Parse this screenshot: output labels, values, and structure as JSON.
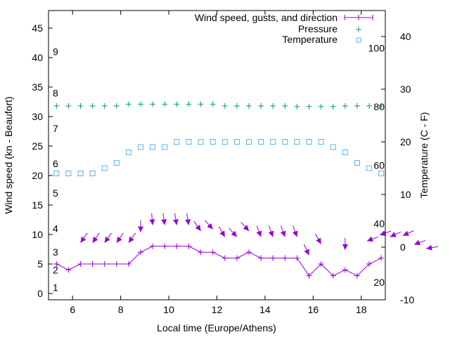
{
  "chart_data": {
    "type": "line",
    "title": "",
    "xlabel": "Local time (Europe/Athens)",
    "ylabel": "Wind speed (kn - Beaufort)",
    "y2label": "Temperature (C - F)",
    "xlim": [
      5,
      19
    ],
    "ylim": [
      -1,
      48
    ],
    "y2lim": [
      -10,
      45
    ],
    "x_ticks": [
      "6",
      "8",
      "10",
      "12",
      "14",
      "16",
      "18"
    ],
    "x_tick_values": [
      6,
      8,
      10,
      12,
      14,
      16,
      18
    ],
    "y_ticks": [
      "0",
      "5",
      "10",
      "15",
      "20",
      "25",
      "30",
      "35",
      "40",
      "45"
    ],
    "y_tick_values": [
      0,
      5,
      10,
      15,
      20,
      25,
      30,
      35,
      40,
      45
    ],
    "y2_ticks": [
      "-10",
      "0",
      "10",
      "20",
      "30",
      "40"
    ],
    "y2_tick_values": [
      -10,
      0,
      10,
      20,
      30,
      40
    ],
    "beaufort_labels": [
      {
        "label": "1",
        "kn": 1
      },
      {
        "label": "2",
        "kn": 4
      },
      {
        "label": "3",
        "kn": 7
      },
      {
        "label": "4",
        "kn": 11
      },
      {
        "label": "5",
        "kn": 17
      },
      {
        "label": "6",
        "kn": 22
      },
      {
        "label": "7",
        "kn": 28
      },
      {
        "label": "8",
        "kn": 34
      },
      {
        "label": "9",
        "kn": 41
      }
    ],
    "fahrenheit_labels": [
      {
        "label": "20",
        "f": 20
      },
      {
        "label": "40",
        "f": 40
      },
      {
        "label": "60",
        "f": 60
      },
      {
        "label": "80",
        "f": 80
      },
      {
        "label": "100",
        "f": 100
      }
    ],
    "legend_position": "top-right",
    "legend": [
      "Wind speed, gusts, and direction",
      "Pressure",
      "Temperature"
    ],
    "x": [
      5.33,
      5.83,
      6.33,
      6.83,
      7.33,
      7.83,
      8.33,
      8.83,
      9.33,
      9.83,
      10.33,
      10.83,
      11.33,
      11.83,
      12.33,
      12.83,
      13.33,
      13.83,
      14.33,
      14.83,
      15.33,
      15.83,
      16.33,
      16.83,
      17.33,
      17.83,
      18.33,
      18.83
    ],
    "series": [
      {
        "name": "Wind speed, gusts, and direction",
        "axis": "y",
        "color": "#9400d3",
        "values": [
          5,
          4,
          5,
          5,
          5,
          5,
          5,
          7,
          8,
          8,
          8,
          8,
          7,
          7,
          6,
          6,
          7,
          6,
          6,
          6,
          6,
          3,
          5,
          3,
          4,
          3,
          5,
          6
        ]
      },
      {
        "name": "Pressure",
        "axis": "y",
        "color": "#009e73",
        "values": [
          31.8,
          31.8,
          31.8,
          31.8,
          31.8,
          31.8,
          32.1,
          32.1,
          32.1,
          32.1,
          32.1,
          32.1,
          32.1,
          32.1,
          31.8,
          31.8,
          31.8,
          31.8,
          31.8,
          31.8,
          31.7,
          31.7,
          31.7,
          31.7,
          31.8,
          31.8,
          31.8,
          31.8
        ]
      },
      {
        "name": "Temperature",
        "axis": "y2",
        "color": "#56b4e9",
        "values": [
          14,
          14,
          14,
          14,
          15,
          16,
          18,
          19,
          19,
          19,
          20,
          20,
          20,
          20,
          20,
          20,
          20,
          20,
          20,
          20,
          20,
          20,
          20,
          19,
          18,
          16,
          15,
          14
        ]
      }
    ],
    "gust_arrows": [
      {
        "t": 6.33,
        "gust": 8.6,
        "from_deg": 35
      },
      {
        "t": 6.83,
        "gust": 8.6,
        "from_deg": 35
      },
      {
        "t": 7.33,
        "gust": 8.6,
        "from_deg": 35
      },
      {
        "t": 7.83,
        "gust": 8.6,
        "from_deg": 35
      },
      {
        "t": 8.33,
        "gust": 8.6,
        "from_deg": 35
      },
      {
        "t": 8.83,
        "gust": 10.4,
        "from_deg": 0
      },
      {
        "t": 9.33,
        "gust": 11.6,
        "from_deg": 355
      },
      {
        "t": 9.83,
        "gust": 11.6,
        "from_deg": 352
      },
      {
        "t": 10.33,
        "gust": 11.6,
        "from_deg": 350
      },
      {
        "t": 10.83,
        "gust": 11.6,
        "from_deg": 350
      },
      {
        "t": 11.33,
        "gust": 10.6,
        "from_deg": 325
      },
      {
        "t": 11.83,
        "gust": 10.9,
        "from_deg": 318
      },
      {
        "t": 12.33,
        "gust": 9.6,
        "from_deg": 330
      },
      {
        "t": 12.83,
        "gust": 9.6,
        "from_deg": 318
      },
      {
        "t": 13.33,
        "gust": 10.6,
        "from_deg": 318
      },
      {
        "t": 13.83,
        "gust": 9.6,
        "from_deg": 340
      },
      {
        "t": 14.33,
        "gust": 9.6,
        "from_deg": 340
      },
      {
        "t": 14.83,
        "gust": 9.6,
        "from_deg": 340
      },
      {
        "t": 15.33,
        "gust": 9.6,
        "from_deg": 340
      },
      {
        "t": 15.83,
        "gust": 6.5,
        "from_deg": 335
      },
      {
        "t": 16.33,
        "gust": 8.4,
        "from_deg": 330
      },
      {
        "t": 17.33,
        "gust": 7.4,
        "from_deg": 0
      },
      {
        "t": 18.24,
        "gust": 8.9,
        "from_deg": 70
      },
      {
        "t": 18.77,
        "gust": 9.9,
        "from_deg": 70
      },
      {
        "t": 19.2,
        "gust": 9.6,
        "from_deg": 65
      },
      {
        "t": 19.73,
        "gust": 9.8,
        "from_deg": 65
      },
      {
        "t": 20.2,
        "gust": 8.3,
        "from_deg": 70
      },
      {
        "t": 20.7,
        "gust": 7.6,
        "from_deg": 80
      }
    ]
  }
}
